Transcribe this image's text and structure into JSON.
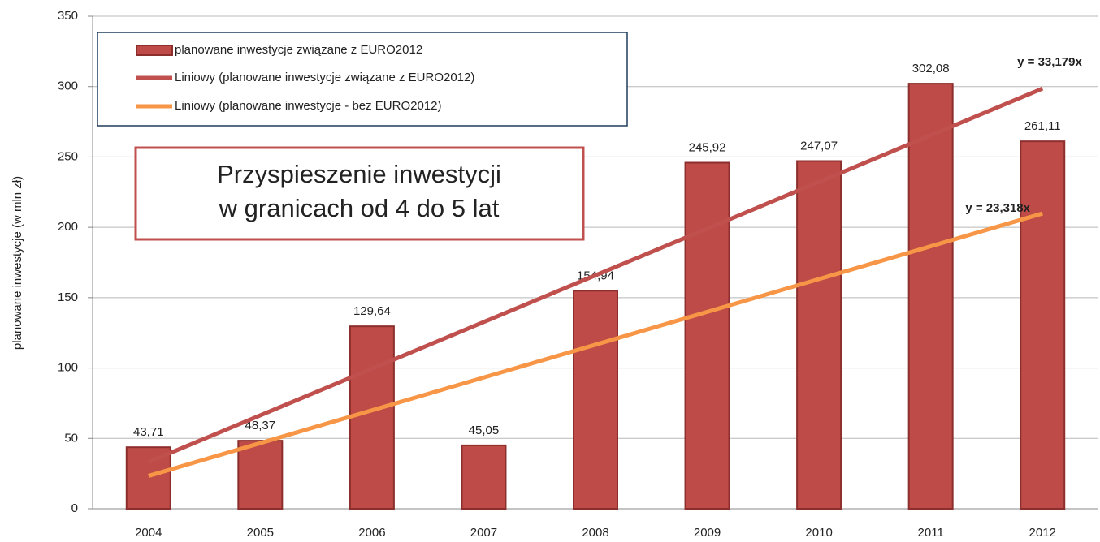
{
  "chart_data": {
    "type": "bar",
    "y_label": "planowane inwestycje (w mln zł)",
    "categories": [
      "2004",
      "2005",
      "2006",
      "2007",
      "2008",
      "2009",
      "2010",
      "2011",
      "2012"
    ],
    "series": [
      {
        "name": "planowane inwestycje związane  z EURO2012",
        "color": "#be4b48",
        "values": [
          43.71,
          48.37,
          129.64,
          45.05,
          154.94,
          245.92,
          247.07,
          302.08,
          261.11
        ],
        "value_labels": [
          "43,71",
          "48,37",
          "129,64",
          "45,05",
          "154,94",
          "245,92",
          "247,07",
          "302,08",
          "261,11"
        ]
      }
    ],
    "trendlines": [
      {
        "name": "Liniowy (planowane inwestycje związane z EURO2012)",
        "color": "#c0504d",
        "slope": 33.179,
        "label": "y = 33,179x"
      },
      {
        "name": "Liniowy (planowane inwestycje  - bez EURO2012)",
        "color": "#f79646",
        "slope": 23.318,
        "label": "y = 23,318x"
      }
    ],
    "annotation": [
      "Przyspieszenie inwestycji",
      "w granicach od 4 do 5 lat"
    ],
    "ylim": [
      0,
      350
    ],
    "yticks": [
      0,
      50,
      100,
      150,
      200,
      250,
      300,
      350
    ],
    "grid": true
  }
}
